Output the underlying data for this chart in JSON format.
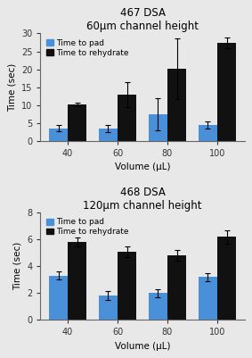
{
  "top": {
    "title_line1": "467 DSA",
    "title_line2": "60μm channel height",
    "categories": [
      40,
      60,
      80,
      100
    ],
    "blue_values": [
      3.5,
      3.5,
      7.5,
      4.3
    ],
    "black_values": [
      10.2,
      13.0,
      20.2,
      27.5
    ],
    "blue_errors": [
      0.8,
      1.0,
      4.5,
      1.0
    ],
    "black_errors": [
      0.5,
      3.5,
      8.5,
      1.5
    ],
    "ylim": [
      0,
      30
    ],
    "yticks": [
      0,
      5,
      10,
      15,
      20,
      25,
      30
    ]
  },
  "bottom": {
    "title_line1": "468 DSA",
    "title_line2": "120μm channel height",
    "categories": [
      40,
      60,
      80,
      100
    ],
    "blue_values": [
      3.3,
      1.8,
      2.0,
      3.2
    ],
    "black_values": [
      5.8,
      5.1,
      4.8,
      6.2
    ],
    "blue_errors": [
      0.3,
      0.35,
      0.3,
      0.3
    ],
    "black_errors": [
      0.35,
      0.4,
      0.4,
      0.5
    ],
    "ylim": [
      0,
      8
    ],
    "yticks": [
      0,
      2,
      4,
      6,
      8
    ]
  },
  "blue_color": "#4a90d9",
  "black_color": "#111111",
  "ylabel": "Time (sec)",
  "xlabel": "Volume (μL)",
  "legend_pad_label": "Time to pad",
  "legend_rehydrate_label": "Time to rehydrate",
  "bar_width": 0.38,
  "title_fontsize": 8.5,
  "axis_fontsize": 7.5,
  "tick_fontsize": 7,
  "legend_fontsize": 6.5,
  "background_color": "#e8e8e8"
}
